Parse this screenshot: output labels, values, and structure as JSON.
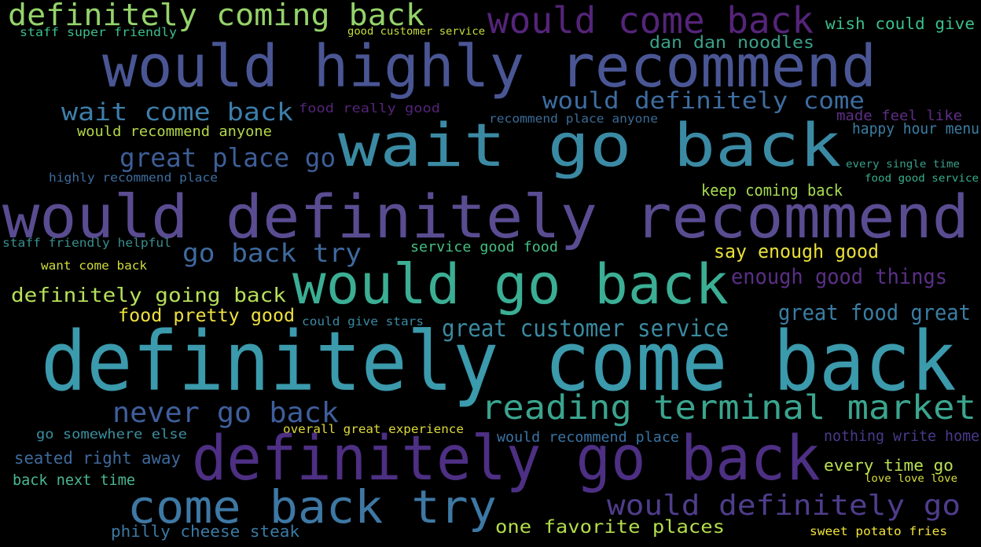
{
  "phrases": [
    {
      "text": "definitely coming back",
      "color": "#94d36a"
    },
    {
      "text": "staff super friendly",
      "color": "#3bbf8c"
    },
    {
      "text": "good customer service",
      "color": "#c8de3c"
    },
    {
      "text": "would come back",
      "color": "#55247a"
    },
    {
      "text": "wish could give",
      "color": "#3bbf8c"
    },
    {
      "text": "dan dan noodles",
      "color": "#3aa18a"
    },
    {
      "text": "would highly recommend",
      "color": "#4a5694"
    },
    {
      "text": "wait come back",
      "color": "#3d7eaa"
    },
    {
      "text": "food really good",
      "color": "#55247a"
    },
    {
      "text": "would definitely come",
      "color": "#3d6da0"
    },
    {
      "text": "recommend place anyone",
      "color": "#3b6b96"
    },
    {
      "text": "made feel like",
      "color": "#5e2e86"
    },
    {
      "text": "would recommend anyone",
      "color": "#b3d848"
    },
    {
      "text": "happy hour menu",
      "color": "#3a7fa4"
    },
    {
      "text": "wait go back",
      "color": "#3b8aa4"
    },
    {
      "text": "great place go",
      "color": "#3e5e97"
    },
    {
      "text": "every single time",
      "color": "#3aa08a"
    },
    {
      "text": "highly recommend place",
      "color": "#3e6ea0"
    },
    {
      "text": "food good service",
      "color": "#36b08c"
    },
    {
      "text": "keep coming back",
      "color": "#a8dd52"
    },
    {
      "text": "would definitely recommend",
      "color": "#5a4c91"
    },
    {
      "text": "staff friendly helpful",
      "color": "#3a8e8e"
    },
    {
      "text": "go back try",
      "color": "#3f6aa0"
    },
    {
      "text": "service good food",
      "color": "#44c080"
    },
    {
      "text": "say enough good",
      "color": "#e8e03a"
    },
    {
      "text": "want come back",
      "color": "#d0dc3a"
    },
    {
      "text": "enough good things",
      "color": "#5a2f86"
    },
    {
      "text": "definitely going back",
      "color": "#b6e05a"
    },
    {
      "text": "would go back",
      "color": "#3bae94"
    },
    {
      "text": "food pretty good",
      "color": "#ede040"
    },
    {
      "text": "could give stars",
      "color": "#3a8aa4"
    },
    {
      "text": "great food great",
      "color": "#3a7ea4"
    },
    {
      "text": "great customer service",
      "color": "#3a8aa0"
    },
    {
      "text": "definitely come back",
      "color": "#3b9aac"
    },
    {
      "text": "never go back",
      "color": "#3f5e9c"
    },
    {
      "text": "reading terminal market",
      "color": "#3ba48e"
    },
    {
      "text": "go somewhere else",
      "color": "#3a90a0"
    },
    {
      "text": "overall great experience",
      "color": "#ddd93a"
    },
    {
      "text": "would recommend place",
      "color": "#3a74a4"
    },
    {
      "text": "nothing write home",
      "color": "#4a3a8c"
    },
    {
      "text": "seated right away",
      "color": "#3e6a9c"
    },
    {
      "text": "definitely go back",
      "color": "#4d2f83"
    },
    {
      "text": "every time go",
      "color": "#b9e052"
    },
    {
      "text": "back next time",
      "color": "#4ab890"
    },
    {
      "text": "love love love",
      "color": "#d9df3a"
    },
    {
      "text": "come back try",
      "color": "#3e78a4"
    },
    {
      "text": "would definitely go",
      "color": "#4f3d8c"
    },
    {
      "text": "one favorite places",
      "color": "#b3dd4a"
    },
    {
      "text": "philly cheese steak",
      "color": "#3b79a4"
    },
    {
      "text": "sweet potato fries",
      "color": "#f0e23a"
    }
  ]
}
